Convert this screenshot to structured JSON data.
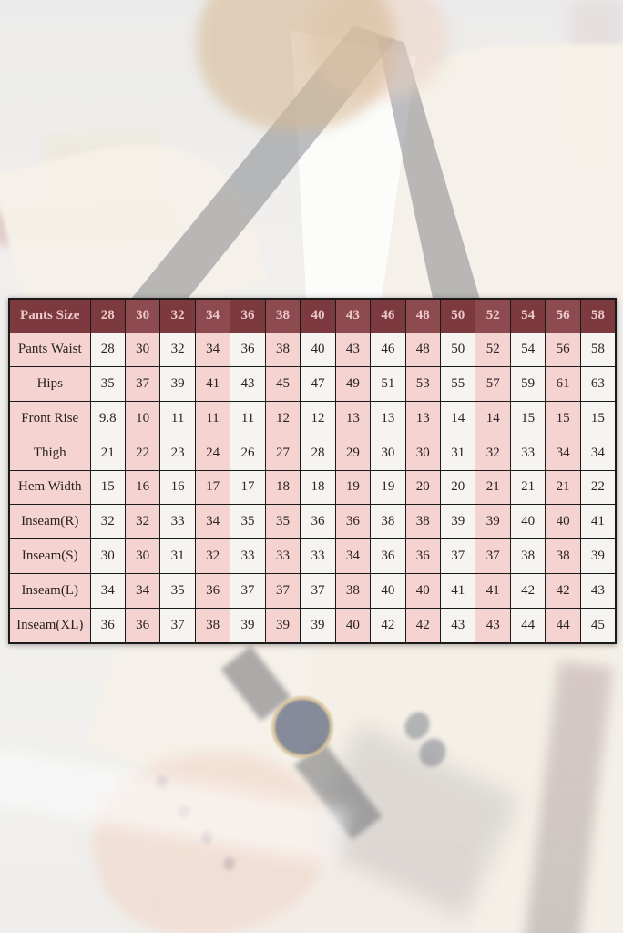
{
  "chart_data": {
    "type": "table",
    "corner_label": "Pants Size",
    "categories": [
      "28",
      "30",
      "32",
      "34",
      "36",
      "38",
      "40",
      "43",
      "46",
      "48",
      "50",
      "52",
      "54",
      "56",
      "58"
    ],
    "series": [
      {
        "name": "Pants Waist",
        "values": [
          "28",
          "30",
          "32",
          "34",
          "36",
          "38",
          "40",
          "43",
          "46",
          "48",
          "50",
          "52",
          "54",
          "56",
          "58"
        ]
      },
      {
        "name": "Hips",
        "values": [
          "35",
          "37",
          "39",
          "41",
          "43",
          "45",
          "47",
          "49",
          "51",
          "53",
          "55",
          "57",
          "59",
          "61",
          "63"
        ]
      },
      {
        "name": "Front Rise",
        "values": [
          "9.8",
          "10",
          "11",
          "11",
          "11",
          "12",
          "12",
          "13",
          "13",
          "13",
          "14",
          "14",
          "15",
          "15",
          "15"
        ]
      },
      {
        "name": "Thigh",
        "values": [
          "21",
          "22",
          "23",
          "24",
          "26",
          "27",
          "28",
          "29",
          "30",
          "30",
          "31",
          "32",
          "33",
          "34",
          "34"
        ]
      },
      {
        "name": "Hem Width",
        "values": [
          "15",
          "16",
          "16",
          "17",
          "17",
          "18",
          "18",
          "19",
          "19",
          "20",
          "20",
          "21",
          "21",
          "21",
          "22"
        ]
      },
      {
        "name": "Inseam(R)",
        "values": [
          "32",
          "32",
          "33",
          "34",
          "35",
          "35",
          "36",
          "36",
          "38",
          "38",
          "39",
          "39",
          "40",
          "40",
          "41"
        ]
      },
      {
        "name": "Inseam(S)",
        "values": [
          "30",
          "30",
          "31",
          "32",
          "33",
          "33",
          "33",
          "34",
          "36",
          "36",
          "37",
          "37",
          "38",
          "38",
          "39"
        ]
      },
      {
        "name": "Inseam(L)",
        "values": [
          "34",
          "34",
          "35",
          "36",
          "37",
          "37",
          "37",
          "38",
          "40",
          "40",
          "41",
          "41",
          "42",
          "42",
          "43"
        ]
      },
      {
        "name": "Inseam(XL)",
        "values": [
          "36",
          "36",
          "37",
          "38",
          "39",
          "39",
          "39",
          "40",
          "42",
          "42",
          "43",
          "43",
          "44",
          "44",
          "45"
        ]
      }
    ],
    "layout": {
      "grid": true,
      "header_row_position": "top",
      "label_column_position": "left"
    }
  },
  "colors": {
    "header_bg_dark": "#7c3a3f",
    "header_bg_light": "#8d4b50",
    "header_text": "#ecc8c6",
    "cell_bg_white": "#f6f4f0",
    "cell_bg_pink": "#f4d3d1",
    "label_bg": "#f4d3d1",
    "cell_text": "#2c2323",
    "grid_color": "#1a1a1a"
  },
  "background": {
    "description": "faded photo of a bearded man wearing a cream tuxedo with black lapels, white shirt, and a dark round wristwatch on his left wrist"
  }
}
